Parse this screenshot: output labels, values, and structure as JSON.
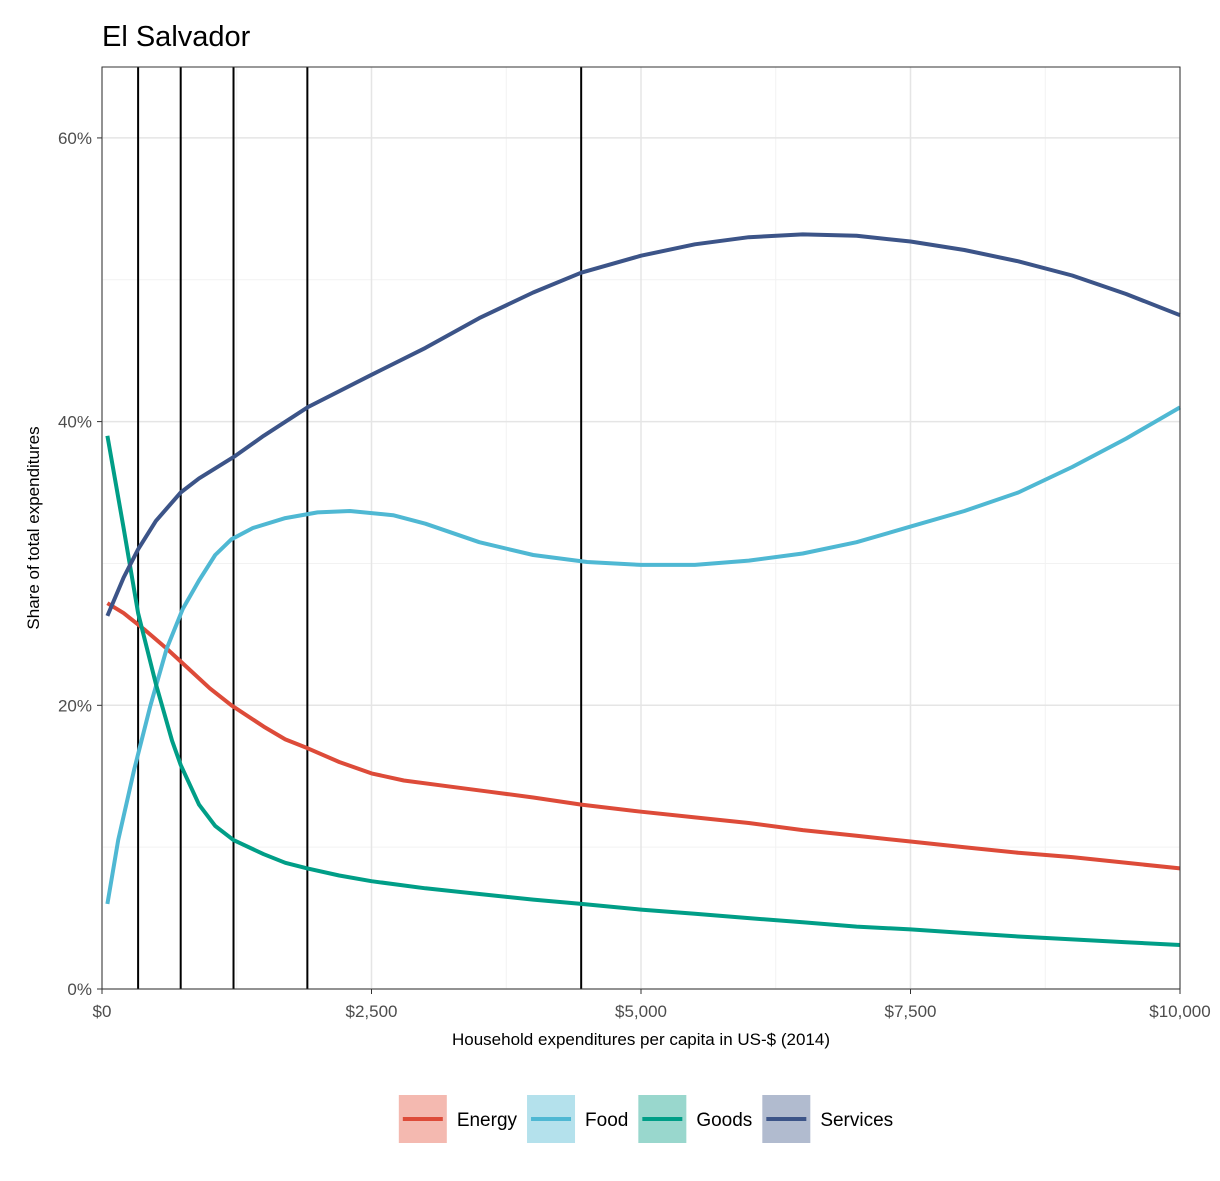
{
  "chart_data": {
    "type": "line",
    "title": "El Salvador",
    "xlabel": "Household expenditures per capita in US-$ (2014)",
    "ylabel": "Share of total expenditures",
    "xlim": [
      0,
      10000
    ],
    "ylim": [
      0,
      65
    ],
    "x_ticks": [
      {
        "value": 0,
        "label": "$0"
      },
      {
        "value": 2500,
        "label": "$2,500"
      },
      {
        "value": 5000,
        "label": "$5,000"
      },
      {
        "value": 7500,
        "label": "$7,500"
      },
      {
        "value": 10000,
        "label": "$10,000"
      }
    ],
    "y_ticks": [
      {
        "value": 0,
        "label": "0%"
      },
      {
        "value": 20,
        "label": "20%"
      },
      {
        "value": 40,
        "label": "40%"
      },
      {
        "value": 60,
        "label": "60%"
      }
    ],
    "grid": true,
    "legend_position": "bottom",
    "vlines": [
      335,
      730,
      1220,
      1905,
      4445
    ],
    "series": [
      {
        "name": "Energy",
        "color": "#dd4b39",
        "legend_fill": "#f4b9b0",
        "points": [
          [
            50,
            27.2
          ],
          [
            200,
            26.5
          ],
          [
            400,
            25.3
          ],
          [
            600,
            24.0
          ],
          [
            800,
            22.6
          ],
          [
            1000,
            21.2
          ],
          [
            1200,
            20.0
          ],
          [
            1500,
            18.5
          ],
          [
            1700,
            17.6
          ],
          [
            1900,
            17.0
          ],
          [
            2200,
            16.0
          ],
          [
            2500,
            15.2
          ],
          [
            2800,
            14.7
          ],
          [
            3200,
            14.3
          ],
          [
            3600,
            13.9
          ],
          [
            4000,
            13.5
          ],
          [
            4445,
            13.0
          ],
          [
            5000,
            12.5
          ],
          [
            5500,
            12.1
          ],
          [
            6000,
            11.7
          ],
          [
            6500,
            11.2
          ],
          [
            7000,
            10.8
          ],
          [
            7500,
            10.4
          ],
          [
            8000,
            10.0
          ],
          [
            8500,
            9.6
          ],
          [
            9000,
            9.3
          ],
          [
            9500,
            8.9
          ],
          [
            10000,
            8.5
          ]
        ]
      },
      {
        "name": "Food",
        "color": "#4fb8d3",
        "legend_fill": "#b4e1ec",
        "points": [
          [
            50,
            6.0
          ],
          [
            150,
            10.5
          ],
          [
            300,
            15.5
          ],
          [
            450,
            20.0
          ],
          [
            600,
            24.0
          ],
          [
            750,
            26.8
          ],
          [
            900,
            28.8
          ],
          [
            1050,
            30.6
          ],
          [
            1200,
            31.7
          ],
          [
            1400,
            32.5
          ],
          [
            1700,
            33.2
          ],
          [
            2000,
            33.6
          ],
          [
            2300,
            33.7
          ],
          [
            2700,
            33.4
          ],
          [
            3000,
            32.8
          ],
          [
            3500,
            31.5
          ],
          [
            4000,
            30.6
          ],
          [
            4500,
            30.1
          ],
          [
            5000,
            29.9
          ],
          [
            5500,
            29.9
          ],
          [
            6000,
            30.2
          ],
          [
            6500,
            30.7
          ],
          [
            7000,
            31.5
          ],
          [
            7500,
            32.6
          ],
          [
            8000,
            33.7
          ],
          [
            8500,
            35.0
          ],
          [
            9000,
            36.8
          ],
          [
            9500,
            38.8
          ],
          [
            10000,
            41.0
          ]
        ]
      },
      {
        "name": "Goods",
        "color": "#009e87",
        "legend_fill": "#99d7cd",
        "points": [
          [
            50,
            39.0
          ],
          [
            200,
            32.5
          ],
          [
            335,
            26.5
          ],
          [
            500,
            21.5
          ],
          [
            650,
            17.5
          ],
          [
            730,
            15.8
          ],
          [
            900,
            13.0
          ],
          [
            1050,
            11.5
          ],
          [
            1220,
            10.5
          ],
          [
            1500,
            9.5
          ],
          [
            1700,
            8.9
          ],
          [
            1905,
            8.5
          ],
          [
            2200,
            8.0
          ],
          [
            2500,
            7.6
          ],
          [
            3000,
            7.1
          ],
          [
            3500,
            6.7
          ],
          [
            4000,
            6.3
          ],
          [
            4445,
            6.0
          ],
          [
            5000,
            5.6
          ],
          [
            5500,
            5.3
          ],
          [
            6000,
            5.0
          ],
          [
            6500,
            4.7
          ],
          [
            7000,
            4.4
          ],
          [
            7500,
            4.2
          ],
          [
            8000,
            3.95
          ],
          [
            8500,
            3.7
          ],
          [
            9000,
            3.5
          ],
          [
            9500,
            3.3
          ],
          [
            10000,
            3.1
          ]
        ]
      },
      {
        "name": "Services",
        "color": "#3c5488",
        "legend_fill": "#b1bbcf",
        "points": [
          [
            50,
            26.3
          ],
          [
            200,
            29.0
          ],
          [
            335,
            31.0
          ],
          [
            500,
            33.0
          ],
          [
            730,
            35.0
          ],
          [
            900,
            36.0
          ],
          [
            1220,
            37.5
          ],
          [
            1500,
            39.0
          ],
          [
            1905,
            41.0
          ],
          [
            2500,
            43.3
          ],
          [
            3000,
            45.2
          ],
          [
            3500,
            47.3
          ],
          [
            4000,
            49.1
          ],
          [
            4445,
            50.5
          ],
          [
            5000,
            51.7
          ],
          [
            5500,
            52.5
          ],
          [
            6000,
            53.0
          ],
          [
            6500,
            53.2
          ],
          [
            7000,
            53.1
          ],
          [
            7500,
            52.7
          ],
          [
            8000,
            52.1
          ],
          [
            8500,
            51.3
          ],
          [
            9000,
            50.3
          ],
          [
            9500,
            49.0
          ],
          [
            10000,
            47.5
          ]
        ]
      }
    ]
  }
}
